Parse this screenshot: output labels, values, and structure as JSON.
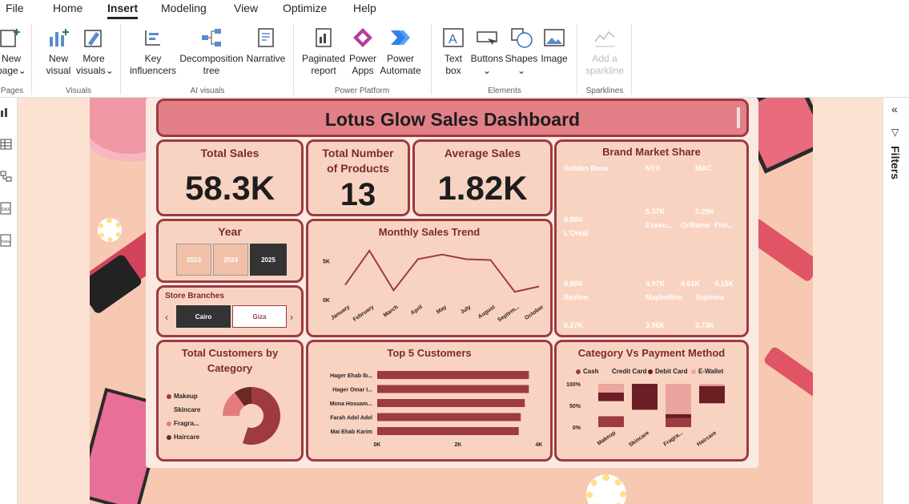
{
  "menu": {
    "items": [
      "File",
      "Home",
      "Insert",
      "Modeling",
      "View",
      "Optimize",
      "Help"
    ],
    "active": "Insert"
  },
  "ribbon": {
    "new_page": [
      "New",
      "page"
    ],
    "new_visual": [
      "New",
      "visual"
    ],
    "more_visuals": [
      "More",
      "visuals"
    ],
    "key_influencers": [
      "Key",
      "influencers"
    ],
    "decomposition_tree": [
      "Decomposition",
      "tree"
    ],
    "narrative": [
      "Narrative"
    ],
    "paginated_report": [
      "Paginated",
      "report"
    ],
    "power_apps": [
      "Power",
      "Apps"
    ],
    "power_automate": [
      "Power",
      "Automate"
    ],
    "text_box": [
      "Text",
      "box"
    ],
    "buttons": [
      "Buttons"
    ],
    "shapes": [
      "Shapes"
    ],
    "image": [
      "Image"
    ],
    "add_sparkline": [
      "Add a",
      "sparkline"
    ],
    "groups": {
      "pages": "Pages",
      "visuals": "Visuals",
      "ai_visuals": "AI visuals",
      "power_platform": "Power Platform",
      "elements": "Elements",
      "sparklines": "Sparklines"
    }
  },
  "right_pane": {
    "filters": "Filters"
  },
  "dashboard": {
    "title": "Lotus Glow Sales Dashboard",
    "kpis": {
      "total_sales_label": "Total Sales",
      "total_sales_value": "58.3K",
      "total_products_label_1": "Total Number",
      "total_products_label_2": "of Products",
      "total_products_value": "13",
      "avg_sales_label": "Average Sales",
      "avg_sales_value": "1.82K"
    },
    "year_slicer": {
      "title": "Year",
      "options": [
        "2023",
        "2024",
        "2025"
      ],
      "selected": "2025"
    },
    "store_slicer": {
      "title": "Store Branches",
      "options": [
        "Cairo",
        "Giza"
      ],
      "selected": "Cairo"
    },
    "customers_by_category": {
      "title_1": "Total Customers by",
      "title_2": "Category",
      "legend": [
        {
          "name": "Makeup",
          "color": "#9e3a42"
        },
        {
          "name": "Skincare",
          "color": "#f9d3c2"
        },
        {
          "name": "Fragra...",
          "color": "#e47b7f"
        },
        {
          "name": "Haircare",
          "color": "#6b2a1f"
        }
      ]
    },
    "monthly_trend": {
      "title": "Monthly Sales Trend"
    },
    "top_customers": {
      "title": "Top 5 Customers"
    },
    "brand_share": {
      "title": "Brand Market Share",
      "cells": [
        {
          "name": "Golden Rose",
          "value": "9.98K",
          "color": "#d9505d"
        },
        {
          "name": "NYX",
          "value": "5.37K",
          "color": "#e2636f"
        },
        {
          "name": "MAC",
          "value": "5.28K",
          "color": "#b1492a"
        },
        {
          "name": "L'Oréal",
          "value": "9.98K",
          "color": "#c8404f"
        },
        {
          "name": "Essen...",
          "value": "4.97K",
          "color": "#a3303d"
        },
        {
          "name": "Oriflame",
          "value": "4.61K",
          "color": "#6e2027"
        },
        {
          "name": "Flor...",
          "value": "4.15K",
          "color": "#e88c92"
        },
        {
          "name": "Revlon",
          "value": "6.27K",
          "color": "#f08a5d"
        },
        {
          "name": "Maybelline",
          "value": "3.96K",
          "color": "#6e2a1c"
        },
        {
          "name": "Sephora",
          "value": "3.73K",
          "color": "#eaa59e"
        }
      ]
    },
    "category_payment": {
      "title": "Category Vs Payment Method",
      "legend": [
        {
          "name": "Cash",
          "color": "#9e3a42"
        },
        {
          "name": "Credit Card",
          "color": "#f9d3c2"
        },
        {
          "name": "Debit Card",
          "color": "#6b1e24"
        },
        {
          "name": "E-Wallet",
          "color": "#eaa59e"
        }
      ]
    }
  },
  "chart_data": [
    {
      "type": "line",
      "title": "Monthly Sales Trend",
      "categories": [
        "January",
        "February",
        "March",
        "April",
        "May",
        "July",
        "August",
        "Septem...",
        "October"
      ],
      "values": [
        1900,
        6300,
        1200,
        5200,
        5800,
        5200,
        5100,
        1000,
        1700
      ],
      "yticks": [
        "0K",
        "5K"
      ],
      "ylim": [
        0,
        7000
      ]
    },
    {
      "type": "bar",
      "title": "Top 5 Customers",
      "orientation": "horizontal",
      "categories": [
        "Hager Ehab Ib...",
        "Hager Omar I...",
        "Mona Hossam...",
        "Farah Adel Adel",
        "Mai Ehab Karim"
      ],
      "values": [
        3750,
        3750,
        3650,
        3550,
        3500
      ],
      "xticks": [
        "0K",
        "2K",
        "4K"
      ],
      "xlim": [
        0,
        4000
      ],
      "color": "#9e3a42"
    },
    {
      "type": "pie",
      "title": "Total Customers by Category",
      "donut": true,
      "categories": [
        "Makeup",
        "Skincare",
        "Fragra...",
        "Haircare"
      ],
      "values": [
        55,
        20,
        15,
        10
      ],
      "colors": [
        "#9e3a42",
        "#f9d3c2",
        "#e47b7f",
        "#6b2a1f"
      ]
    },
    {
      "type": "bar",
      "title": "Category Vs Payment Method",
      "stacked": "100%",
      "categories": [
        "Makeup",
        "Skincare",
        "Fragra...",
        "Haircare"
      ],
      "yticks": [
        "0%",
        "50%",
        "100%"
      ],
      "series": [
        {
          "name": "Cash",
          "values": [
            25,
            0,
            20,
            0
          ]
        },
        {
          "name": "Credit Card",
          "values": [
            35,
            40,
            0,
            55
          ]
        },
        {
          "name": "Debit Card",
          "values": [
            20,
            60,
            10,
            40
          ]
        },
        {
          "name": "E-Wallet",
          "values": [
            20,
            0,
            70,
            5
          ]
        }
      ]
    },
    {
      "type": "heatmap",
      "title": "Brand Market Share",
      "note": "treemap",
      "categories": [
        "Golden Rose",
        "NYX",
        "MAC",
        "L'Oréal",
        "Essen...",
        "Oriflame",
        "Flor...",
        "Revlon",
        "Maybelline",
        "Sephora"
      ],
      "values": [
        9980,
        5370,
        5280,
        9980,
        4970,
        4610,
        4150,
        6270,
        3960,
        3730
      ]
    }
  ]
}
